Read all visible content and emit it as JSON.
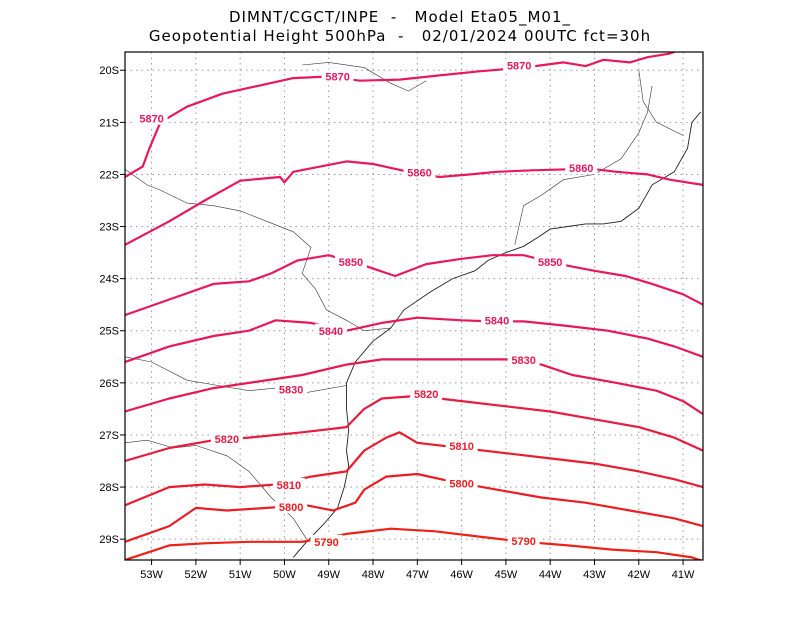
{
  "header": {
    "line1": "DIMNT/CGCT/INPE  -   Model Eta05_M01_",
    "line2": "Geopotential Height 500hPa  -   02/01/2024 00UTC fct=30h"
  },
  "chart_data": {
    "type": "contour-map",
    "title": "Geopotential Height 500hPa",
    "source": "DIMNT/CGCT/INPE - Model Eta05_M01_",
    "valid": "02/01/2024 00UTC fct=30h",
    "xlim": [
      -53.6,
      -40.55
    ],
    "ylim": [
      -29.4,
      -19.65
    ],
    "grid": true,
    "x_ticks": [
      {
        "value": -53,
        "label": "53W"
      },
      {
        "value": -52,
        "label": "52W"
      },
      {
        "value": -51,
        "label": "51W"
      },
      {
        "value": -50,
        "label": "50W"
      },
      {
        "value": -49,
        "label": "49W"
      },
      {
        "value": -48,
        "label": "48W"
      },
      {
        "value": -47,
        "label": "47W"
      },
      {
        "value": -46,
        "label": "46W"
      },
      {
        "value": -45,
        "label": "45W"
      },
      {
        "value": -44,
        "label": "44W"
      },
      {
        "value": -43,
        "label": "43W"
      },
      {
        "value": -42,
        "label": "42W"
      },
      {
        "value": -41,
        "label": "41W"
      }
    ],
    "y_ticks": [
      {
        "value": -20,
        "label": "20S"
      },
      {
        "value": -21,
        "label": "21S"
      },
      {
        "value": -22,
        "label": "22S"
      },
      {
        "value": -23,
        "label": "23S"
      },
      {
        "value": -24,
        "label": "24S"
      },
      {
        "value": -25,
        "label": "25S"
      },
      {
        "value": -26,
        "label": "26S"
      },
      {
        "value": -27,
        "label": "27S"
      },
      {
        "value": -28,
        "label": "28S"
      },
      {
        "value": -29,
        "label": "29S"
      }
    ],
    "contours": [
      {
        "level": 5870,
        "color": "#e8185e",
        "labels": [
          "5870",
          "5870",
          "5870"
        ],
        "label_at": [
          [
            -53.0,
            -20.95
          ],
          [
            -48.8,
            -20.14
          ],
          [
            -44.7,
            -19.93
          ]
        ],
        "points": [
          [
            -53.6,
            -22.05
          ],
          [
            -53.2,
            -21.85
          ],
          [
            -53.05,
            -21.5
          ],
          [
            -52.8,
            -21.0
          ],
          [
            -52.2,
            -20.7
          ],
          [
            -51.4,
            -20.45
          ],
          [
            -50.6,
            -20.3
          ],
          [
            -49.8,
            -20.15
          ],
          [
            -49.0,
            -20.12
          ],
          [
            -48.3,
            -20.2
          ],
          [
            -47.4,
            -20.18
          ],
          [
            -46.5,
            -20.1
          ],
          [
            -45.6,
            -20.02
          ],
          [
            -44.6,
            -19.95
          ],
          [
            -43.7,
            -19.85
          ],
          [
            -43.2,
            -19.92
          ],
          [
            -42.8,
            -19.8
          ],
          [
            -42.2,
            -19.85
          ],
          [
            -41.8,
            -19.75
          ],
          [
            -41.3,
            -19.68
          ],
          [
            -40.9,
            -19.55
          ]
        ]
      },
      {
        "level": 5860,
        "color": "#e8185e",
        "labels": [
          "5860",
          "5860"
        ],
        "label_at": [
          [
            -46.95,
            -21.98
          ],
          [
            -43.3,
            -21.9
          ]
        ],
        "points": [
          [
            -53.6,
            -23.35
          ],
          [
            -52.6,
            -22.9
          ],
          [
            -51.8,
            -22.5
          ],
          [
            -51.0,
            -22.12
          ],
          [
            -50.1,
            -22.05
          ],
          [
            -50.0,
            -22.15
          ],
          [
            -49.8,
            -21.95
          ],
          [
            -48.6,
            -21.75
          ],
          [
            -48.0,
            -21.8
          ],
          [
            -47.2,
            -21.95
          ],
          [
            -46.5,
            -22.05
          ],
          [
            -45.8,
            -22.0
          ],
          [
            -45.2,
            -21.95
          ],
          [
            -44.4,
            -21.92
          ],
          [
            -43.5,
            -21.9
          ],
          [
            -43.0,
            -21.9
          ],
          [
            -42.5,
            -21.95
          ],
          [
            -41.8,
            -22.0
          ],
          [
            -41.3,
            -22.1
          ],
          [
            -40.55,
            -22.2
          ]
        ]
      },
      {
        "level": 5850,
        "color": "#e8185e",
        "labels": [
          "5850",
          "5850"
        ],
        "label_at": [
          [
            -48.5,
            -23.7
          ],
          [
            -44.0,
            -23.7
          ]
        ],
        "points": [
          [
            -53.6,
            -24.7
          ],
          [
            -52.6,
            -24.4
          ],
          [
            -51.6,
            -24.1
          ],
          [
            -50.8,
            -24.05
          ],
          [
            -50.3,
            -23.9
          ],
          [
            -49.7,
            -23.65
          ],
          [
            -49.0,
            -23.55
          ],
          [
            -48.2,
            -23.75
          ],
          [
            -47.5,
            -23.95
          ],
          [
            -46.8,
            -23.72
          ],
          [
            -46.0,
            -23.62
          ],
          [
            -45.3,
            -23.55
          ],
          [
            -44.6,
            -23.55
          ],
          [
            -43.8,
            -23.72
          ],
          [
            -43.0,
            -23.85
          ],
          [
            -42.3,
            -23.95
          ],
          [
            -41.7,
            -24.1
          ],
          [
            -41.0,
            -24.3
          ],
          [
            -40.55,
            -24.5
          ]
        ]
      },
      {
        "level": 5840,
        "color": "#e6185a",
        "labels": [
          "5840",
          "5840"
        ],
        "label_at": [
          [
            -48.95,
            -25.02
          ],
          [
            -45.2,
            -24.82
          ]
        ],
        "points": [
          [
            -53.6,
            -25.6
          ],
          [
            -52.6,
            -25.3
          ],
          [
            -51.6,
            -25.1
          ],
          [
            -50.8,
            -25.0
          ],
          [
            -50.2,
            -24.8
          ],
          [
            -49.4,
            -24.85
          ],
          [
            -48.6,
            -25.0
          ],
          [
            -47.8,
            -24.85
          ],
          [
            -47.0,
            -24.75
          ],
          [
            -46.0,
            -24.8
          ],
          [
            -45.3,
            -24.82
          ],
          [
            -44.6,
            -24.82
          ],
          [
            -43.7,
            -24.9
          ],
          [
            -42.7,
            -25.0
          ],
          [
            -41.8,
            -25.15
          ],
          [
            -41.2,
            -25.3
          ],
          [
            -40.55,
            -25.5
          ]
        ]
      },
      {
        "level": 5830,
        "color": "#e61a50",
        "labels": [
          "5830",
          "5830"
        ],
        "label_at": [
          [
            -49.85,
            -26.15
          ],
          [
            -44.6,
            -25.58
          ]
        ],
        "points": [
          [
            -53.6,
            -26.55
          ],
          [
            -52.6,
            -26.3
          ],
          [
            -51.6,
            -26.1
          ],
          [
            -50.8,
            -26.0
          ],
          [
            -49.6,
            -25.85
          ],
          [
            -48.6,
            -25.65
          ],
          [
            -47.8,
            -25.55
          ],
          [
            -46.8,
            -25.55
          ],
          [
            -45.6,
            -25.55
          ],
          [
            -44.8,
            -25.55
          ],
          [
            -44.2,
            -25.65
          ],
          [
            -43.5,
            -25.85
          ],
          [
            -42.5,
            -26.0
          ],
          [
            -41.6,
            -26.15
          ],
          [
            -41.0,
            -26.35
          ],
          [
            -40.55,
            -26.6
          ]
        ]
      },
      {
        "level": 5820,
        "color": "#e61c40",
        "labels": [
          "5820",
          "5820"
        ],
        "label_at": [
          [
            -51.3,
            -27.1
          ],
          [
            -46.8,
            -26.23
          ]
        ],
        "points": [
          [
            -53.6,
            -27.5
          ],
          [
            -52.6,
            -27.25
          ],
          [
            -51.6,
            -27.1
          ],
          [
            -50.8,
            -27.05
          ],
          [
            -49.6,
            -26.95
          ],
          [
            -48.6,
            -26.85
          ],
          [
            -48.2,
            -26.5
          ],
          [
            -47.8,
            -26.3
          ],
          [
            -47.0,
            -26.25
          ],
          [
            -46.0,
            -26.35
          ],
          [
            -45.0,
            -26.45
          ],
          [
            -44.0,
            -26.55
          ],
          [
            -43.0,
            -26.7
          ],
          [
            -42.0,
            -26.85
          ],
          [
            -41.2,
            -27.05
          ],
          [
            -40.55,
            -27.3
          ]
        ]
      },
      {
        "level": 5810,
        "color": "#e81e30",
        "labels": [
          "5810",
          "5810"
        ],
        "label_at": [
          [
            -49.9,
            -27.98
          ],
          [
            -46.0,
            -27.23
          ]
        ],
        "points": [
          [
            -53.6,
            -28.35
          ],
          [
            -52.6,
            -28.0
          ],
          [
            -51.8,
            -27.95
          ],
          [
            -51.0,
            -28.0
          ],
          [
            -50.2,
            -27.95
          ],
          [
            -49.4,
            -27.8
          ],
          [
            -48.6,
            -27.7
          ],
          [
            -48.2,
            -27.3
          ],
          [
            -47.7,
            -27.05
          ],
          [
            -47.4,
            -26.95
          ],
          [
            -47.0,
            -27.15
          ],
          [
            -46.0,
            -27.25
          ],
          [
            -45.0,
            -27.35
          ],
          [
            -44.0,
            -27.45
          ],
          [
            -43.0,
            -27.55
          ],
          [
            -42.0,
            -27.7
          ],
          [
            -41.2,
            -27.85
          ],
          [
            -40.55,
            -28.0
          ]
        ]
      },
      {
        "level": 5800,
        "color": "#ea1e22",
        "labels": [
          "5800",
          "5800"
        ],
        "label_at": [
          [
            -49.85,
            -28.4
          ],
          [
            -46.0,
            -27.95
          ]
        ],
        "points": [
          [
            -53.6,
            -29.05
          ],
          [
            -52.6,
            -28.75
          ],
          [
            -52.0,
            -28.4
          ],
          [
            -51.3,
            -28.45
          ],
          [
            -50.4,
            -28.4
          ],
          [
            -49.5,
            -28.35
          ],
          [
            -48.9,
            -28.45
          ],
          [
            -48.4,
            -28.3
          ],
          [
            -48.2,
            -28.05
          ],
          [
            -47.7,
            -27.8
          ],
          [
            -47.0,
            -27.75
          ],
          [
            -46.2,
            -27.9
          ],
          [
            -45.2,
            -28.05
          ],
          [
            -44.2,
            -28.2
          ],
          [
            -43.2,
            -28.3
          ],
          [
            -42.2,
            -28.45
          ],
          [
            -41.2,
            -28.6
          ],
          [
            -40.55,
            -28.75
          ]
        ]
      },
      {
        "level": 5790,
        "color": "#ec2218",
        "labels": [
          "5790",
          "5790"
        ],
        "label_at": [
          [
            -49.05,
            -29.07
          ],
          [
            -44.6,
            -29.05
          ]
        ],
        "points": [
          [
            -53.6,
            -29.4
          ],
          [
            -52.6,
            -29.12
          ],
          [
            -51.8,
            -29.08
          ],
          [
            -50.8,
            -29.05
          ],
          [
            -49.6,
            -29.05
          ],
          [
            -48.6,
            -28.9
          ],
          [
            -47.6,
            -28.8
          ],
          [
            -46.6,
            -28.85
          ],
          [
            -45.6,
            -28.95
          ],
          [
            -44.6,
            -29.05
          ],
          [
            -43.6,
            -29.12
          ],
          [
            -42.6,
            -29.2
          ],
          [
            -41.6,
            -29.25
          ],
          [
            -40.8,
            -29.35
          ],
          [
            -40.55,
            -29.42
          ]
        ]
      }
    ],
    "coastline": [
      [
        -47.6,
        -24.95
      ],
      [
        -47.3,
        -24.6
      ],
      [
        -46.7,
        -24.25
      ],
      [
        -46.2,
        -24.0
      ],
      [
        -45.7,
        -23.85
      ],
      [
        -45.4,
        -23.65
      ],
      [
        -45.0,
        -23.5
      ],
      [
        -44.6,
        -23.38
      ],
      [
        -44.3,
        -23.22
      ],
      [
        -44.0,
        -23.05
      ],
      [
        -43.6,
        -23.0
      ],
      [
        -43.2,
        -22.95
      ],
      [
        -42.8,
        -22.95
      ],
      [
        -42.4,
        -22.9
      ],
      [
        -42.0,
        -22.65
      ],
      [
        -41.7,
        -22.2
      ],
      [
        -41.2,
        -21.95
      ],
      [
        -40.9,
        -21.5
      ],
      [
        -40.8,
        -21.0
      ],
      [
        -40.6,
        -20.8
      ]
    ],
    "coastline_south": [
      [
        -47.6,
        -24.95
      ],
      [
        -48.0,
        -25.2
      ],
      [
        -48.4,
        -25.6
      ],
      [
        -48.6,
        -26.0
      ],
      [
        -48.6,
        -26.5
      ],
      [
        -48.55,
        -26.9
      ],
      [
        -48.6,
        -27.3
      ],
      [
        -48.55,
        -27.6
      ],
      [
        -48.65,
        -28.0
      ],
      [
        -48.8,
        -28.4
      ],
      [
        -49.1,
        -28.7
      ],
      [
        -49.5,
        -29.05
      ],
      [
        -49.8,
        -29.35
      ]
    ],
    "borders": [
      [
        [
          -50.4,
          -22.9
        ],
        [
          -51.0,
          -22.7
        ],
        [
          -51.6,
          -22.6
        ],
        [
          -52.2,
          -22.55
        ],
        [
          -52.8,
          -22.3
        ],
        [
          -53.1,
          -22.2
        ],
        [
          -53.6,
          -21.9
        ]
      ],
      [
        [
          -53.6,
          -25.5
        ],
        [
          -53.0,
          -25.6
        ],
        [
          -52.2,
          -25.95
        ],
        [
          -51.5,
          -26.05
        ],
        [
          -50.8,
          -26.15
        ],
        [
          -50.2,
          -26.1
        ],
        [
          -49.6,
          -26.2
        ],
        [
          -48.6,
          -26.05
        ]
      ],
      [
        [
          -53.6,
          -27.15
        ],
        [
          -53.1,
          -27.1
        ],
        [
          -52.5,
          -27.25
        ],
        [
          -52.0,
          -27.2
        ],
        [
          -51.3,
          -27.4
        ],
        [
          -50.8,
          -27.7
        ],
        [
          -50.3,
          -28.2
        ],
        [
          -49.8,
          -28.6
        ],
        [
          -49.5,
          -29.0
        ]
      ],
      [
        [
          -50.4,
          -22.9
        ],
        [
          -49.8,
          -23.1
        ],
        [
          -49.4,
          -23.4
        ],
        [
          -49.6,
          -23.9
        ],
        [
          -49.3,
          -24.2
        ],
        [
          -49.05,
          -24.6
        ],
        [
          -48.6,
          -24.8
        ],
        [
          -48.2,
          -25.0
        ],
        [
          -47.6,
          -24.95
        ]
      ],
      [
        [
          -44.8,
          -23.35
        ],
        [
          -44.6,
          -22.6
        ],
        [
          -44.2,
          -22.4
        ],
        [
          -43.7,
          -22.1
        ],
        [
          -43.0,
          -22.0
        ],
        [
          -42.4,
          -21.7
        ],
        [
          -42.0,
          -21.2
        ],
        [
          -41.8,
          -20.8
        ],
        [
          -41.7,
          -20.3
        ]
      ],
      [
        [
          -49.6,
          -19.9
        ],
        [
          -49.0,
          -19.85
        ],
        [
          -48.2,
          -19.95
        ],
        [
          -47.6,
          -20.25
        ],
        [
          -47.2,
          -20.4
        ],
        [
          -46.8,
          -20.2
        ]
      ],
      [
        [
          -42.0,
          -20.0
        ],
        [
          -41.9,
          -20.6
        ],
        [
          -41.6,
          -21.0
        ],
        [
          -41.0,
          -21.25
        ]
      ]
    ]
  }
}
